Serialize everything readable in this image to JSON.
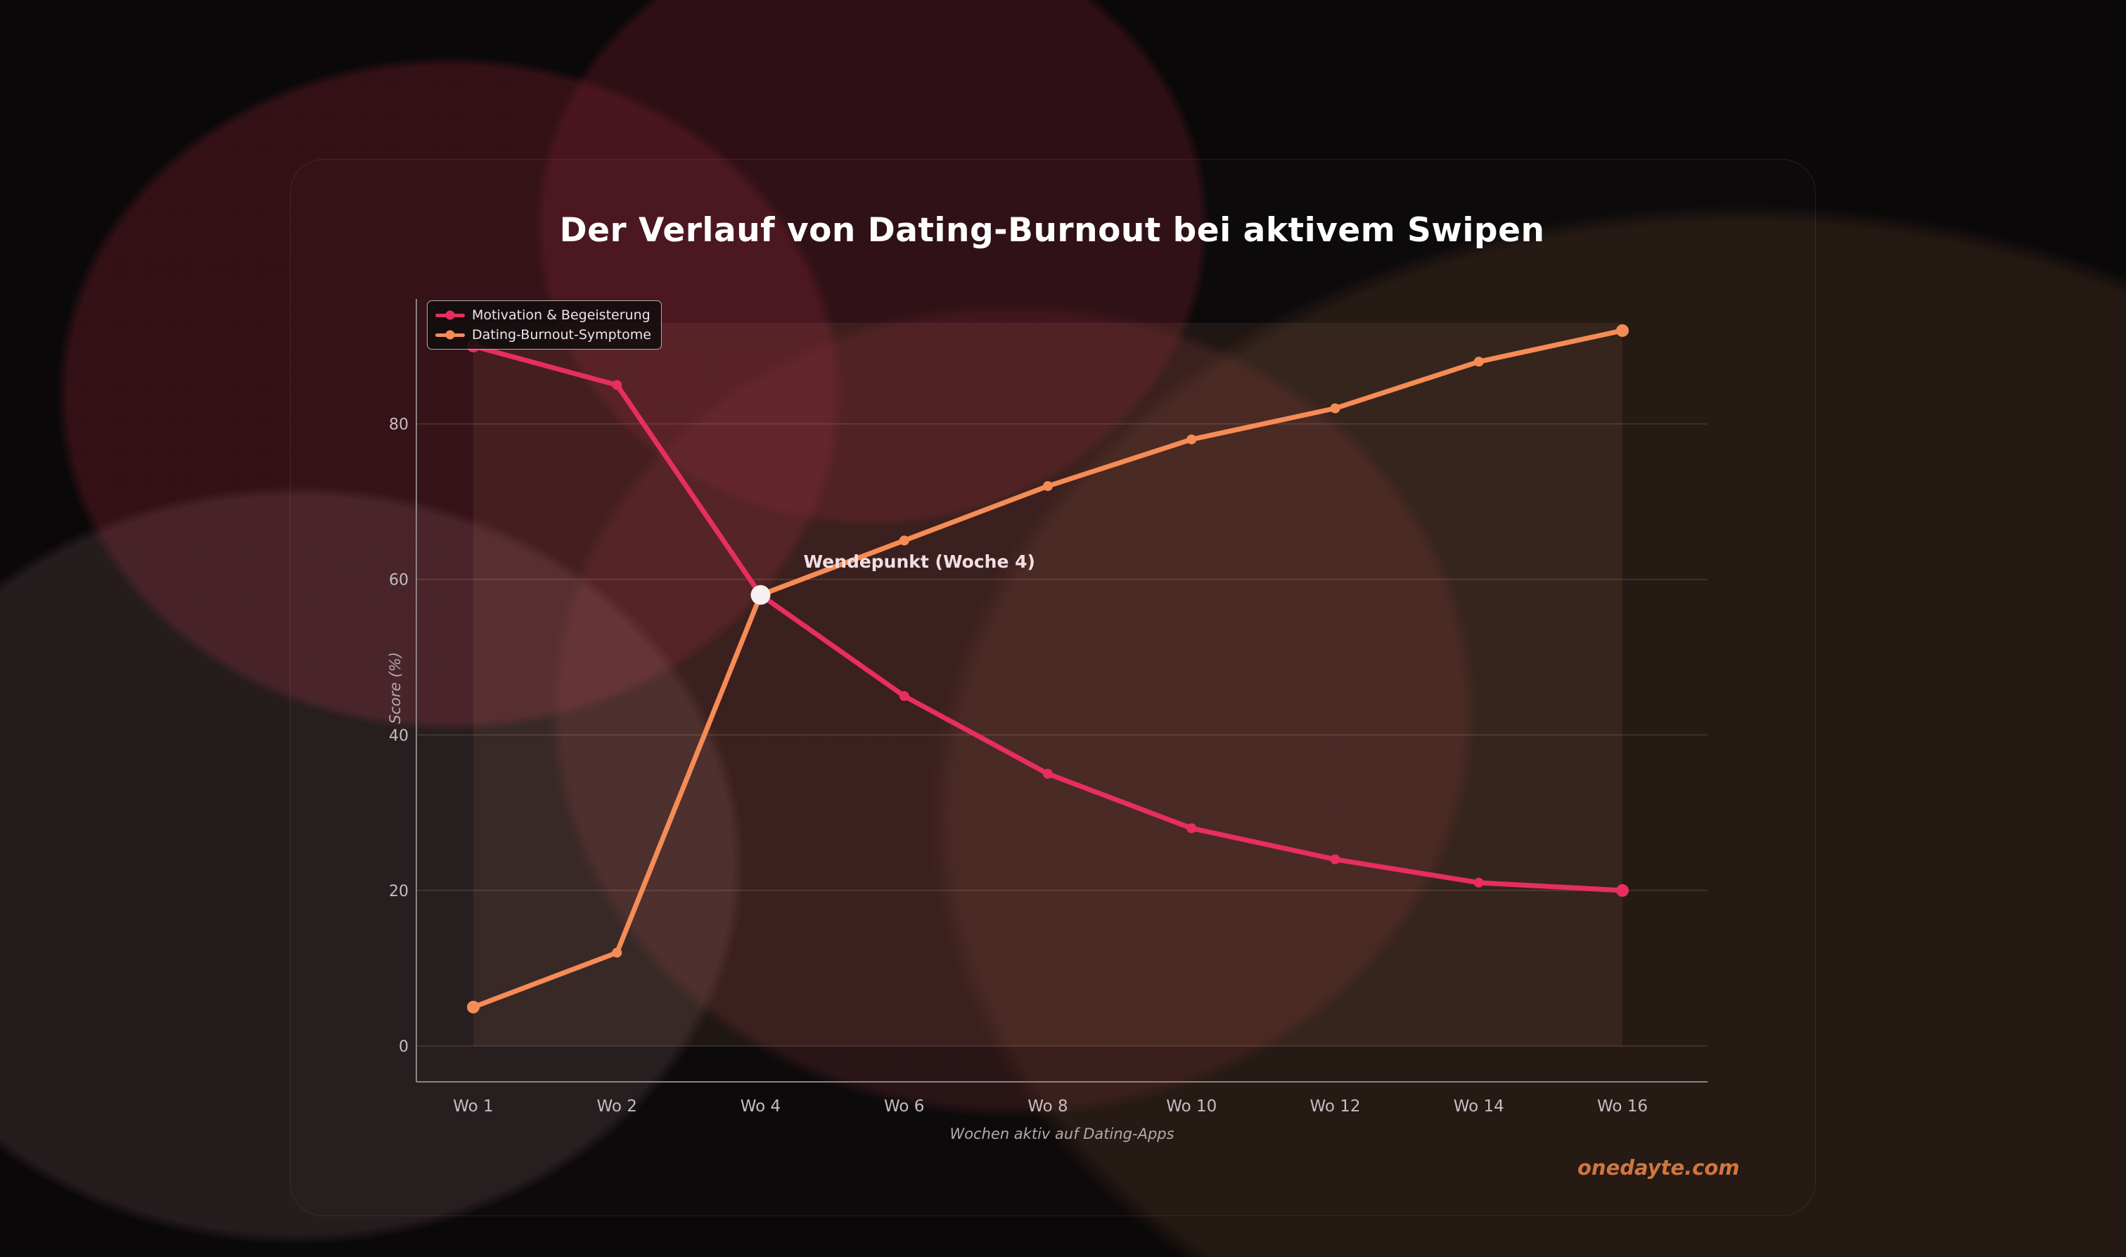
{
  "chart_data": {
    "type": "line",
    "title": "Der Verlauf von Dating-Burnout bei aktivem Swipen",
    "xlabel": "Wochen aktiv auf Dating-Apps",
    "ylabel": "Score (%)",
    "categories": [
      "Wo 1",
      "Wo 2",
      "Wo 4",
      "Wo 6",
      "Wo 8",
      "Wo 10",
      "Wo 12",
      "Wo 14",
      "Wo 16"
    ],
    "y_ticks": [
      0,
      20,
      40,
      60,
      80
    ],
    "ylim": [
      -5,
      96
    ],
    "grid": true,
    "legend_position": "upper left",
    "series": [
      {
        "name": "Motivation & Begeisterung",
        "color": "#e72e5e",
        "values": [
          90,
          85,
          58,
          45,
          35,
          28,
          24,
          21,
          20
        ]
      },
      {
        "name": "Dating-Burnout-Symptome",
        "color": "#f68c55",
        "values": [
          5,
          12,
          58,
          65,
          72,
          78,
          82,
          88,
          92
        ]
      }
    ],
    "annotations": [
      {
        "text": "Wendepunkt (Woche 4)",
        "category": "Wo 4",
        "value": 58,
        "marker_color": "#f7f0f2"
      }
    ],
    "highlight_span": {
      "from": "Wo 1",
      "to": "Wo 16",
      "value_from": 0,
      "value_to": 93
    }
  },
  "watermark": "onedayte.com",
  "colors": {
    "title": "#ffffff",
    "tick_text": "#c5bdbf",
    "axis_label_text": "#b3a9ac",
    "annotation_text": "#f2dfe4",
    "watermark": "#d1763f",
    "gridline": "rgba(240,205,195,0.13)",
    "spine": "#8d8284",
    "highlight_fill": "rgba(235,150,110,0.09)"
  }
}
